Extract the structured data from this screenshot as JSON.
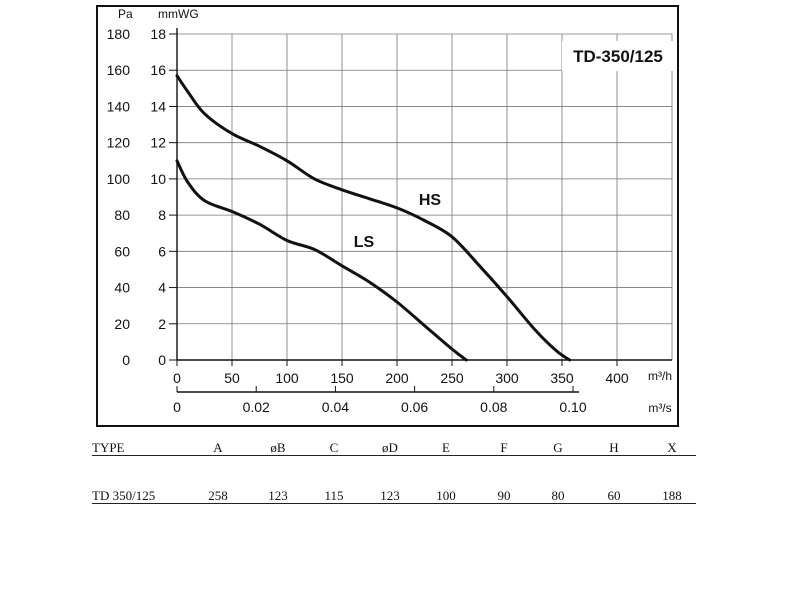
{
  "chart_data": {
    "type": "line",
    "title": "TD-350/125",
    "y_axis_left": {
      "unit": "Pa",
      "ticks": [
        "0",
        "20",
        "40",
        "60",
        "80",
        "100",
        "120",
        "140",
        "160",
        "180"
      ],
      "range": [
        0,
        180
      ]
    },
    "y_axis_right": {
      "unit": "mmWG",
      "ticks": [
        "0",
        "2",
        "4",
        "6",
        "8",
        "10",
        "12",
        "14",
        "16",
        "18"
      ],
      "range": [
        0,
        18
      ]
    },
    "x_axis_top": {
      "unit": "m³/h",
      "ticks": [
        "0",
        "50",
        "100",
        "150",
        "200",
        "250",
        "300",
        "350",
        "400"
      ],
      "range": [
        0,
        450
      ]
    },
    "x_axis_bottom": {
      "unit": "m³/s",
      "ticks": [
        "0",
        "0.02",
        "0.04",
        "0.06",
        "0.08",
        "0.10"
      ],
      "tick_values": [
        0,
        0.02,
        0.04,
        0.06,
        0.08,
        0.1
      ]
    },
    "grid": true,
    "series": [
      {
        "name": "HS",
        "x": [
          0,
          10,
          25,
          50,
          75,
          100,
          125,
          150,
          175,
          200,
          225,
          250,
          275,
          300,
          325,
          345,
          357
        ],
        "y": [
          157,
          148,
          136,
          125,
          118,
          110,
          100,
          94,
          89,
          84,
          77,
          68,
          52,
          35,
          17,
          5,
          0
        ]
      },
      {
        "name": "LS",
        "x": [
          0,
          10,
          25,
          50,
          75,
          100,
          125,
          150,
          175,
          200,
          225,
          250,
          263
        ],
        "y": [
          110,
          98,
          88,
          82,
          75,
          66,
          61,
          52,
          43,
          32,
          19,
          6,
          0
        ]
      }
    ]
  },
  "spec_table": {
    "headers": [
      "TYPE",
      "A",
      "øB",
      "C",
      "øD",
      "E",
      "F",
      "G",
      "H",
      "X"
    ],
    "rows": [
      [
        "TD 350/125",
        "258",
        "123",
        "115",
        "123",
        "100",
        "90",
        "80",
        "60",
        "188"
      ]
    ]
  }
}
